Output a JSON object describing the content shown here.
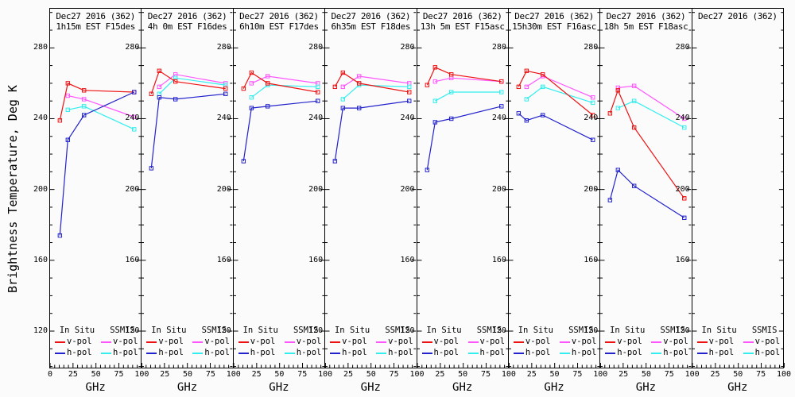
{
  "chart_data": {
    "type": "line",
    "marker": "open-square",
    "title": "",
    "y_axis": {
      "title": "Brightness Temperature, Deg K",
      "major_ticks": [
        280,
        240,
        200,
        160,
        120
      ],
      "minor_step": 10,
      "range": [
        99,
        302
      ]
    },
    "x_axis": {
      "label": "GHz",
      "major_ticks": [
        0,
        25,
        50,
        75,
        100
      ],
      "minor_step": 5,
      "range": [
        0,
        100
      ]
    },
    "legend": {
      "insitu_header": "In Situ",
      "ssmis_header": "SSMIS",
      "vpol_label": "v-pol",
      "hpol_label": "h-pol",
      "position": "bottom-inside"
    },
    "colors": {
      "insitu_v": "#ee1111",
      "insitu_h": "#2222cc",
      "ssmis_v": "#ff55ff",
      "ssmis_h": "#33eeee"
    },
    "insitu_freqs_ghz": [
      10.7,
      19.35,
      37,
      91.655
    ],
    "ssmis_freqs_ghz": [
      19.35,
      37,
      91.655
    ],
    "grid": false,
    "panels": [
      {
        "title_line1": "Dec27 2016 (362)",
        "title_line2": "1h15m EST F15des",
        "insitu_v": [
          239,
          260,
          256,
          255
        ],
        "insitu_h": [
          174,
          228,
          242,
          255
        ],
        "ssmis_v": [
          253,
          251,
          241
        ],
        "ssmis_h": [
          245,
          247,
          234
        ]
      },
      {
        "title_line1": "Dec27 2016 (362)",
        "title_line2": "4h 0m EST F16des",
        "insitu_v": [
          254,
          267,
          261,
          257
        ],
        "insitu_h": [
          212,
          252,
          251,
          254
        ],
        "ssmis_v": [
          258,
          265,
          260
        ],
        "ssmis_h": [
          254,
          263,
          259
        ]
      },
      {
        "title_line1": "Dec27 2016 (362)",
        "title_line2": "6h10m EST F17des",
        "insitu_v": [
          257,
          266,
          260,
          255
        ],
        "insitu_h": [
          216,
          246,
          247,
          250
        ],
        "ssmis_v": [
          260,
          264,
          260
        ],
        "ssmis_h": [
          252,
          259,
          258
        ]
      },
      {
        "title_line1": "Dec27 2016 (362)",
        "title_line2": "6h35m EST F18des",
        "insitu_v": [
          258,
          266,
          260,
          255
        ],
        "insitu_h": [
          216,
          246,
          246,
          250
        ],
        "ssmis_v": [
          258,
          264,
          260
        ],
        "ssmis_h": [
          251,
          259,
          258
        ]
      },
      {
        "title_line1": "Dec27 2016 (362)",
        "title_line2": "13h 5m EST F15asc",
        "insitu_v": [
          259,
          269,
          265,
          261
        ],
        "insitu_h": [
          211,
          238,
          240,
          247
        ],
        "ssmis_v": [
          261,
          263,
          261
        ],
        "ssmis_h": [
          250,
          255,
          255
        ]
      },
      {
        "title_line1": "Dec27 2016 (362)",
        "title_line2": "15h30m EST F16asc",
        "insitu_v": [
          258,
          267,
          265,
          242
        ],
        "insitu_h": [
          243,
          239,
          242,
          228
        ],
        "ssmis_v": [
          258,
          264,
          252
        ],
        "ssmis_h": [
          251,
          258,
          249
        ]
      },
      {
        "title_line1": "Dec27 2016 (362)",
        "title_line2": "18h 5m EST F18asc",
        "insitu_v": [
          243,
          256,
          235,
          195
        ],
        "insitu_h": [
          194,
          211,
          202,
          184
        ],
        "ssmis_v": [
          257.5,
          258.5,
          240
        ],
        "ssmis_h": [
          246,
          250,
          235
        ]
      },
      {
        "title_line1": "Dec27 2016 (362)",
        "title_line2": "",
        "insitu_v": [],
        "insitu_h": [],
        "ssmis_v": [],
        "ssmis_h": []
      }
    ]
  }
}
